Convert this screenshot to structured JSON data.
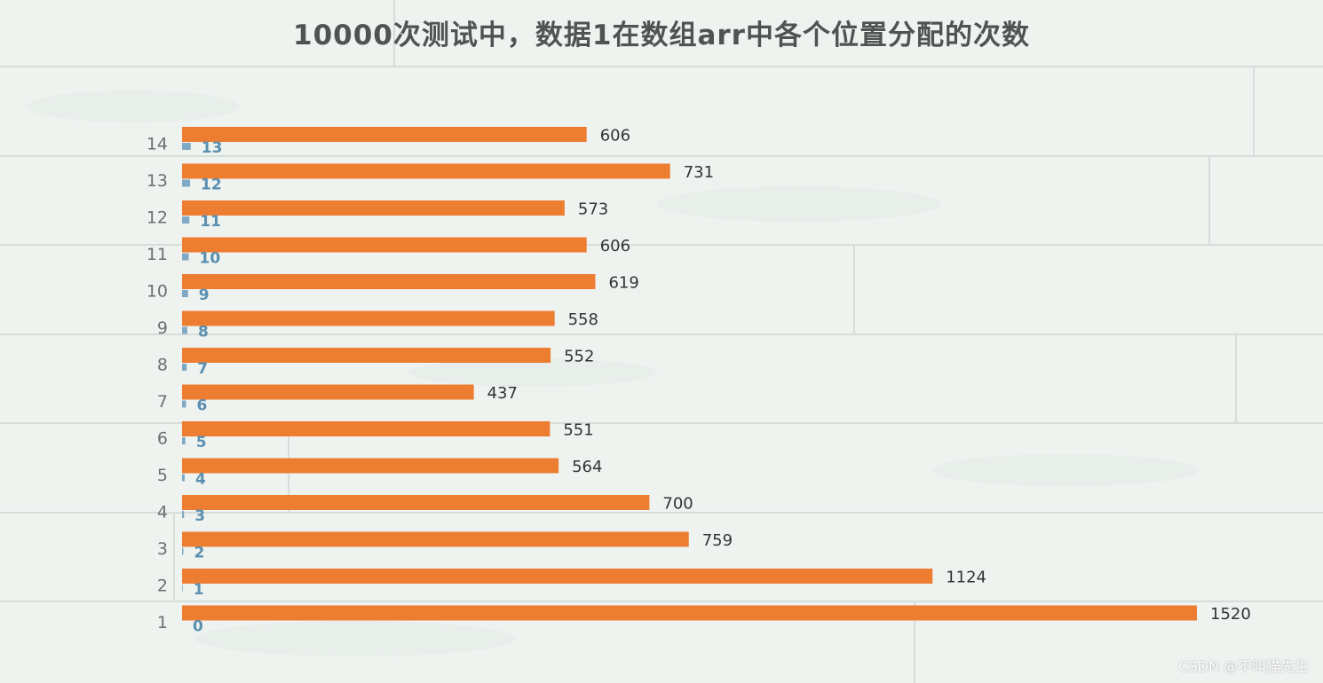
{
  "chart_data": {
    "type": "bar",
    "orientation": "horizontal",
    "title": "10000次测试中，数据1在数组arr中各个位置分配的次数",
    "categories": [
      "1",
      "2",
      "3",
      "4",
      "5",
      "6",
      "7",
      "8",
      "9",
      "10",
      "11",
      "12",
      "13",
      "14"
    ],
    "series": [
      {
        "color": "#ed7d31",
        "values": [
          1520,
          1124,
          759,
          700,
          564,
          551,
          437,
          552,
          558,
          619,
          606,
          573,
          731,
          606
        ]
      },
      {
        "color": "#5b8fb0",
        "values": [
          0,
          1,
          2,
          3,
          4,
          5,
          6,
          7,
          8,
          9,
          10,
          11,
          12,
          13
        ]
      }
    ],
    "xlim": [
      0,
      1600
    ],
    "xaxis_visible": false,
    "grid": false,
    "legend": "none"
  },
  "watermark": "CSDN @不叫猫先生"
}
